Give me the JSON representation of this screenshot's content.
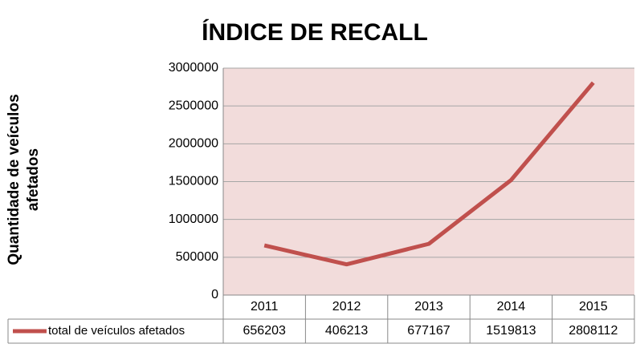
{
  "chart_data": {
    "type": "line",
    "title": "ÍNDICE DE RECALL",
    "y_label": "Quantidade de veículos afetados",
    "categories": [
      "2011",
      "2012",
      "2013",
      "2014",
      "2015"
    ],
    "series": [
      {
        "name": "total de veículos afetados",
        "color": "#c0504d",
        "values": [
          656203,
          406213,
          677167,
          1519813,
          2808112
        ]
      }
    ],
    "ylim": [
      0,
      3000000
    ],
    "yticks": [
      0,
      500000,
      1000000,
      1500000,
      2000000,
      2500000,
      3000000
    ],
    "grid": true,
    "data_table": true
  }
}
